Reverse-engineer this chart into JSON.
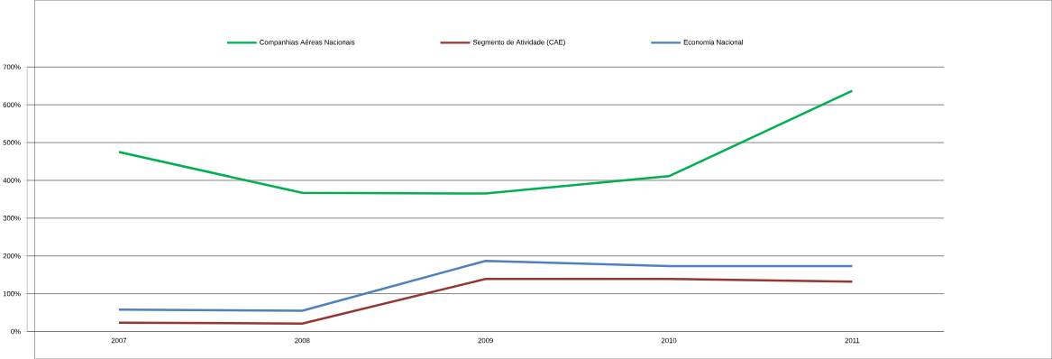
{
  "chart_data": {
    "type": "line",
    "categories": [
      "2007",
      "2008",
      "2009",
      "2010",
      "2011"
    ],
    "series": [
      {
        "name": "Companhias Aéreas Nacionais",
        "color": "#00b050",
        "values": [
          475,
          367,
          365,
          411,
          637
        ]
      },
      {
        "name": "Segmento de Atividade (CAE)",
        "color": "#953735",
        "values": [
          23,
          21,
          139,
          139,
          132
        ]
      },
      {
        "name": "Economia Nacional",
        "color": "#4f81bd",
        "values": [
          58,
          55,
          187,
          173,
          173
        ]
      }
    ],
    "ylim": [
      0,
      700
    ],
    "yticks": [
      {
        "value": 0,
        "label": "0%"
      },
      {
        "value": 100,
        "label": "100%"
      },
      {
        "value": 200,
        "label": "200%"
      },
      {
        "value": 300,
        "label": "300%"
      },
      {
        "value": 400,
        "label": "400%"
      },
      {
        "value": 500,
        "label": "500%"
      },
      {
        "value": 600,
        "label": "600%"
      },
      {
        "value": 700,
        "label": "700%"
      }
    ],
    "grid": "y",
    "legend": "top",
    "marker": "none",
    "line_style": "solid"
  }
}
